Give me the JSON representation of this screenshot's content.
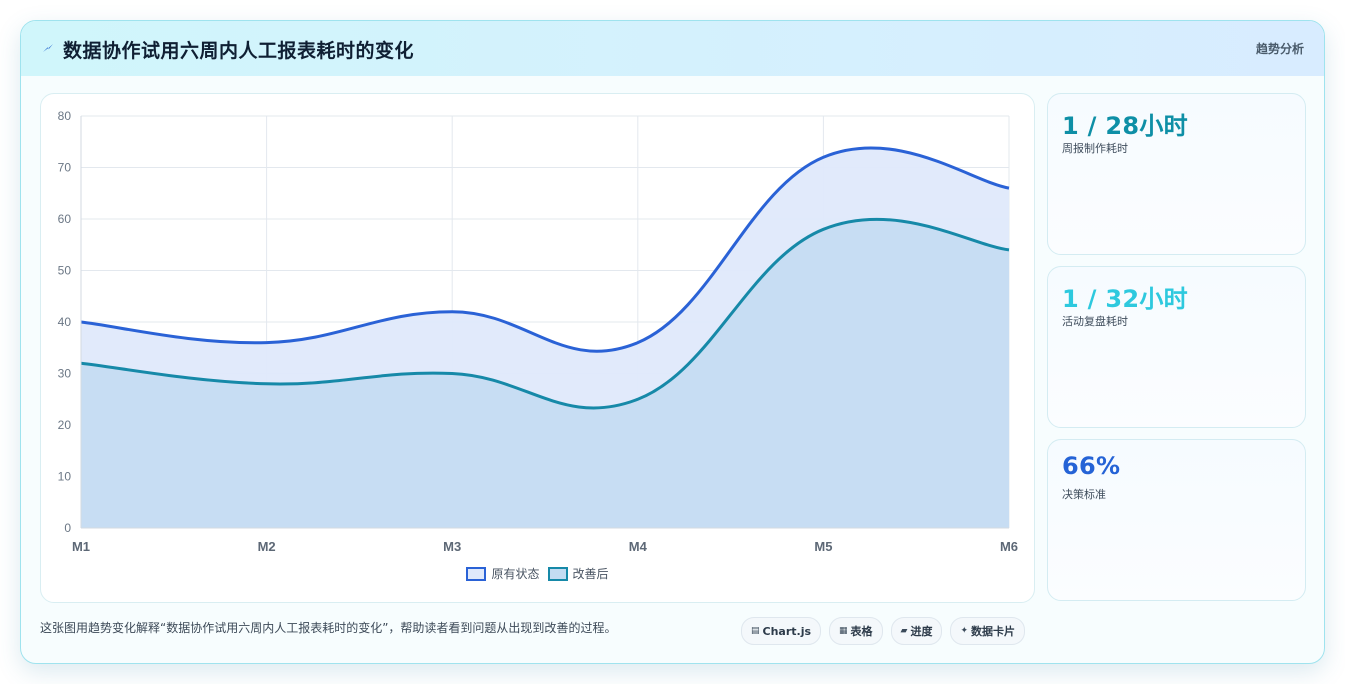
{
  "header": {
    "title": "数据协作试用六周内人工报表耗时的变化",
    "tag": "趋势分析",
    "icon": "lightning-icon"
  },
  "stats": [
    {
      "value": "1 / 28小时",
      "label": "周报制作耗时",
      "color": "#0e8fa6"
    },
    {
      "value": "1 / 32小时",
      "label": "活动复盘耗时",
      "color": "#2ec9de"
    },
    {
      "value": "66%",
      "label": "决策标准",
      "color": "#2563d6"
    }
  ],
  "footer": {
    "description": "这张图用趋势变化解释“数据协作试用六周内人工报表耗时的变化”，帮助读者看到问题从出现到改善的过程。"
  },
  "chips": [
    {
      "icon": "▤",
      "label": "Chart.js"
    },
    {
      "icon": "▦",
      "label": "表格"
    },
    {
      "icon": "▰",
      "label": "进度"
    },
    {
      "icon": "✦",
      "label": "数据卡片"
    }
  ],
  "chart_data": {
    "type": "area",
    "categories": [
      "M1",
      "M2",
      "M3",
      "M4",
      "M5",
      "M6"
    ],
    "series": [
      {
        "name": "原有状态",
        "values": [
          40,
          36,
          42,
          36,
          72,
          66
        ],
        "color": "#2a62d6",
        "fill": "#dfe9fb"
      },
      {
        "name": "改善后",
        "values": [
          32,
          28,
          30,
          25,
          58,
          54
        ],
        "color": "#1689a8",
        "fill": "#c4dcf2"
      }
    ],
    "ylim": [
      0,
      80
    ],
    "yticks": [
      0,
      10,
      20,
      30,
      40,
      50,
      60,
      70,
      80
    ],
    "grid": true,
    "legend": "bottom"
  }
}
